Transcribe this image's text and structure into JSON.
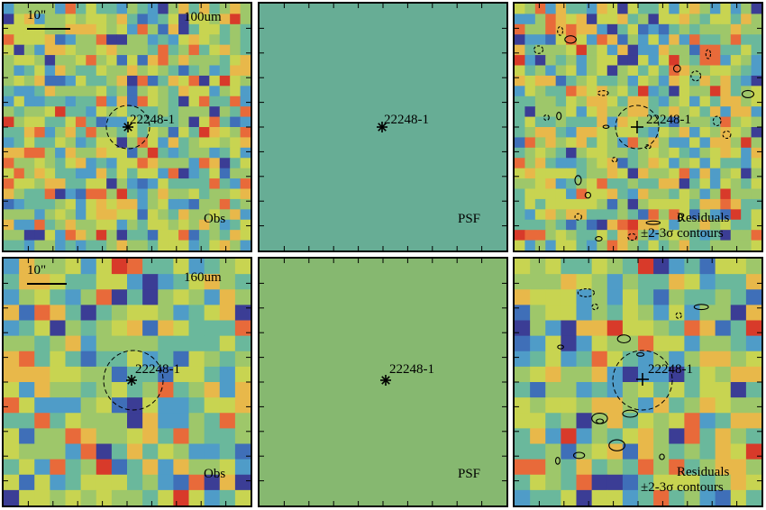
{
  "colormap": [
    "#3b3d95",
    "#3f6fb8",
    "#4f9cc8",
    "#6ab89c",
    "#9ec76a",
    "#c8d451",
    "#e8b84a",
    "#e86a3a",
    "#d83a2a"
  ],
  "psf_colors": {
    "row_100um": "#67ad95",
    "row_160um": "#86b870"
  },
  "rows": [
    {
      "band_label": "100um",
      "scale_label": "10\"",
      "grid": 24,
      "panels": [
        {
          "label": "Obs"
        },
        {
          "label": "PSF"
        },
        {
          "label_line1": "Residuals",
          "label_line2": "±2-3σ contours"
        }
      ],
      "source_label": "22248-1"
    },
    {
      "band_label": "160um",
      "scale_label": "10\"",
      "grid": 16,
      "panels": [
        {
          "label": "Obs"
        },
        {
          "label": "PSF"
        },
        {
          "label_line1": "Residuals",
          "label_line2": "±2-3σ contours"
        }
      ],
      "source_label": "22248-1"
    }
  ]
}
